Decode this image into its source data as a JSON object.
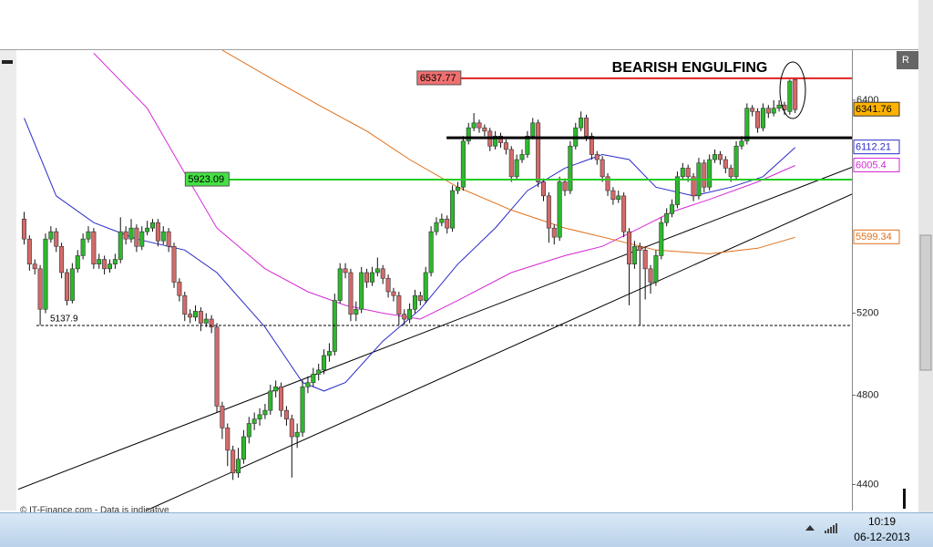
{
  "chart_data": {
    "type": "candlestick",
    "title": "BEARISH ENGULFING",
    "watermark": "© IT-Finance.com - Data is indicative",
    "corner_label": "R",
    "log_scale": true,
    "xlim": [
      -1.1,
      154.6
    ],
    "ylim": [
      4290,
      6720
    ],
    "yticks": [
      6400,
      5200,
      4800,
      4400
    ],
    "up_color": "#2db82d",
    "down_color": "#d46a6a",
    "open": [
      5700,
      5590,
      5455,
      5430,
      5220,
      5590,
      5630,
      5550,
      5410,
      5265,
      5430,
      5500,
      5590,
      5630,
      5455,
      5480,
      5430,
      5455,
      5480,
      5630,
      5590,
      5650,
      5550,
      5630,
      5650,
      5680,
      5580,
      5630,
      5550,
      5360,
      5290,
      5195,
      5180,
      5210,
      5150,
      5170,
      5130,
      4750,
      4650,
      4550,
      4450,
      4510,
      4610,
      4670,
      4690,
      4710,
      4730,
      4820,
      4840,
      4730,
      4690,
      4610,
      4630,
      4840,
      4860,
      4900,
      4920,
      4990,
      5010,
      5265,
      5430,
      5410,
      5195,
      5220,
      5410,
      5360,
      5410,
      5430,
      5380,
      5310,
      5290,
      5195,
      5170,
      5220,
      5290,
      5265,
      5410,
      5630,
      5680,
      5700,
      5650,
      5860,
      5880,
      6150,
      6230,
      6260,
      6230,
      6210,
      6120,
      6180,
      6140,
      6100,
      5940,
      6040,
      6070,
      6180,
      6260,
      5910,
      5830,
      5650,
      5600,
      5910,
      5860,
      6120,
      6230,
      6290,
      6180,
      6070,
      6040,
      5940,
      5860,
      5810,
      5830,
      5630,
      5455,
      5550,
      5530,
      5430,
      5360,
      5500,
      5680,
      5730,
      5780,
      5940,
      5990,
      5940,
      5830,
      6020,
      5880,
      6040,
      6070,
      6040,
      5990,
      5940,
      6120,
      6150,
      6350,
      6330,
      6230,
      6350,
      6320,
      6350,
      6370,
      6330,
      6530
    ],
    "high": [
      5740,
      5610,
      5480,
      5450,
      5620,
      5660,
      5650,
      5570,
      5430,
      5460,
      5530,
      5620,
      5660,
      5650,
      5510,
      5500,
      5480,
      5510,
      5710,
      5660,
      5700,
      5670,
      5660,
      5690,
      5700,
      5700,
      5660,
      5650,
      5570,
      5380,
      5310,
      5220,
      5240,
      5230,
      5200,
      5190,
      5150,
      4770,
      4670,
      4570,
      4560,
      4640,
      4700,
      4720,
      4740,
      4760,
      4850,
      4870,
      4860,
      4750,
      4710,
      4670,
      4870,
      4890,
      4930,
      4950,
      5020,
      5050,
      5300,
      5460,
      5460,
      5430,
      5260,
      5440,
      5430,
      5440,
      5490,
      5450,
      5400,
      5330,
      5310,
      5220,
      5250,
      5320,
      5310,
      5440,
      5660,
      5710,
      5730,
      5720,
      5890,
      5910,
      6180,
      6260,
      6320,
      6280,
      6250,
      6230,
      6210,
      6200,
      6160,
      6120,
      6070,
      6100,
      6210,
      6290,
      6280,
      5930,
      5850,
      5670,
      5940,
      5930,
      6150,
      6260,
      6330,
      6310,
      6200,
      6090,
      6060,
      5960,
      5880,
      5860,
      5850,
      5650,
      5580,
      5570,
      5550,
      5450,
      5530,
      5710,
      5760,
      5810,
      5970,
      6020,
      6010,
      5960,
      6050,
      6040,
      6070,
      6100,
      6090,
      6060,
      6010,
      6150,
      6180,
      6380,
      6370,
      6350,
      6380,
      6370,
      6400,
      6400,
      6390,
      6530,
      6540
    ],
    "low": [
      5560,
      5420,
      5400,
      5140,
      5200,
      5570,
      5520,
      5380,
      5240,
      5250,
      5410,
      5480,
      5570,
      5430,
      5430,
      5400,
      5410,
      5430,
      5460,
      5560,
      5570,
      5520,
      5530,
      5610,
      5630,
      5550,
      5560,
      5520,
      5330,
      5260,
      5160,
      5150,
      5160,
      5110,
      5130,
      5100,
      4720,
      4600,
      4480,
      4420,
      4430,
      4490,
      4580,
      4640,
      4660,
      4690,
      4710,
      4790,
      4700,
      4660,
      4430,
      4560,
      4610,
      4810,
      4840,
      4870,
      4900,
      4960,
      4990,
      5250,
      5380,
      5160,
      5160,
      5200,
      5330,
      5340,
      5390,
      5350,
      5280,
      5260,
      5140,
      5140,
      5150,
      5200,
      5240,
      5250,
      5390,
      5610,
      5660,
      5620,
      5630,
      5840,
      5860,
      6130,
      6210,
      6200,
      6180,
      6090,
      6100,
      6110,
      6070,
      5910,
      5920,
      6020,
      6050,
      6160,
      5880,
      5800,
      5570,
      5560,
      5580,
      5830,
      5840,
      6100,
      6210,
      6150,
      6040,
      6010,
      5910,
      5830,
      5780,
      5790,
      5600,
      5240,
      5430,
      5140,
      5270,
      5300,
      5340,
      5480,
      5660,
      5710,
      5760,
      5920,
      5910,
      5800,
      5810,
      5850,
      5860,
      6020,
      6010,
      5960,
      5910,
      5920,
      6100,
      6130,
      6300,
      6200,
      6210,
      6290,
      6300,
      6330,
      6310,
      6310,
      6320
    ],
    "close": [
      5590,
      5455,
      5430,
      5220,
      5590,
      5630,
      5550,
      5410,
      5265,
      5430,
      5500,
      5590,
      5630,
      5455,
      5480,
      5430,
      5455,
      5480,
      5630,
      5590,
      5650,
      5550,
      5630,
      5650,
      5680,
      5580,
      5630,
      5550,
      5360,
      5290,
      5195,
      5180,
      5210,
      5150,
      5170,
      5130,
      4750,
      4650,
      4550,
      4450,
      4510,
      4610,
      4670,
      4690,
      4710,
      4730,
      4820,
      4840,
      4730,
      4690,
      4610,
      4630,
      4840,
      4860,
      4900,
      4920,
      4990,
      5010,
      5265,
      5430,
      5410,
      5195,
      5220,
      5410,
      5360,
      5410,
      5430,
      5380,
      5310,
      5290,
      5195,
      5170,
      5220,
      5290,
      5265,
      5410,
      5630,
      5680,
      5700,
      5650,
      5860,
      5880,
      6150,
      6230,
      6260,
      6230,
      6210,
      6120,
      6180,
      6140,
      6100,
      5940,
      6040,
      6070,
      6180,
      6260,
      5910,
      5830,
      5650,
      5600,
      5910,
      5860,
      6120,
      6230,
      6290,
      6180,
      6070,
      6040,
      5940,
      5860,
      5810,
      5830,
      5630,
      5455,
      5550,
      5530,
      5430,
      5360,
      5500,
      5680,
      5730,
      5780,
      5940,
      5990,
      5940,
      5830,
      6020,
      5880,
      6040,
      6070,
      6040,
      5990,
      5940,
      6120,
      6150,
      6350,
      6330,
      6230,
      6350,
      6320,
      6350,
      6370,
      6340,
      6520,
      6341.76
    ],
    "close_tag_color": "#ffb300",
    "series": [
      {
        "color": "#2a2ac8",
        "x": [
          0,
          6,
          13,
          21,
          30,
          36,
          45,
          52,
          56,
          60,
          67,
          74,
          81,
          88,
          94,
          101,
          108,
          113,
          118,
          125,
          132,
          138,
          144
        ],
        "values": [
          6290,
          5830,
          5680,
          5590,
          5530,
          5410,
          5130,
          4860,
          4820,
          4860,
          5060,
          5220,
          5455,
          5650,
          5860,
          5990,
          6070,
          6040,
          5880,
          5830,
          5880,
          5940,
          6112.21
        ]
      },
      {
        "color": "#d42ad4",
        "x": [
          13,
          23,
          30,
          36,
          45,
          53,
          60,
          67,
          74,
          81,
          91,
          101,
          108,
          115,
          121,
          128,
          137,
          144
        ],
        "values": [
          6700,
          6350,
          5960,
          5650,
          5430,
          5310,
          5240,
          5200,
          5170,
          5265,
          5410,
          5500,
          5550,
          5650,
          5740,
          5810,
          5910,
          6005.4
        ]
      },
      {
        "color": "#e0701a",
        "x": [
          37,
          46,
          55,
          64,
          72,
          81,
          91,
          101,
          111,
          118,
          128,
          137,
          144
        ],
        "values": [
          6720,
          6540,
          6370,
          6210,
          6040,
          5880,
          5750,
          5650,
          5580,
          5530,
          5510,
          5540,
          5599.34
        ]
      }
    ],
    "levels": [
      {
        "value": 6537.77,
        "x_start": 73.4,
        "color": "#e02020",
        "style": "solid",
        "label_box": "#f07070",
        "show_label": true
      },
      {
        "value": 5923.09,
        "x_start": 30.1,
        "color": "#22cc22",
        "style": "solid",
        "label_box": "#44e044",
        "show_label": true
      },
      {
        "value": 6170,
        "x_start": 78.9,
        "color": "#000000",
        "style": "bold",
        "show_label": false
      },
      {
        "value": 5137.9,
        "x_start": 2.3,
        "color": "#000000",
        "style": "dashed",
        "show_label": true
      }
    ],
    "trendlines": [
      {
        "x": [
          -1.1,
          154.6
        ],
        "values": [
          4380,
          5995
        ],
        "color": "#000000"
      },
      {
        "x": [
          22.8,
          154.6
        ],
        "values": [
          4290,
          5840
        ],
        "color": "#000000"
      }
    ]
  },
  "taskbar": {
    "time": "10:19",
    "date": "06-12-2013"
  }
}
